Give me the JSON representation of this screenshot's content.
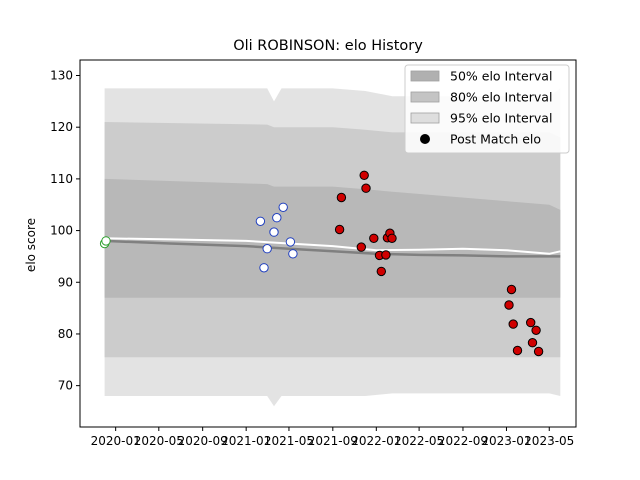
{
  "chart_data": {
    "type": "line",
    "title": "Oli ROBINSON: elo History",
    "xlabel": "",
    "ylabel": "elo score",
    "xlim": [
      "2019-09-23",
      "2023-07-15"
    ],
    "ylim": [
      62,
      133
    ],
    "yticks": [
      70,
      80,
      90,
      100,
      110,
      120,
      130
    ],
    "xticks": [
      "2020-01",
      "2020-05",
      "2020-09",
      "2021-01",
      "2021-05",
      "2021-09",
      "2022-01",
      "2022-05",
      "2022-09",
      "2023-01",
      "2023-05"
    ],
    "grid": false,
    "legend_position": "top-right",
    "legend": [
      {
        "label": "50% elo Interval",
        "kind": "patch",
        "color": "#b0b0b0"
      },
      {
        "label": "80% elo Interval",
        "kind": "patch",
        "color": "#c4c4c4"
      },
      {
        "label": "95% elo Interval",
        "kind": "patch",
        "color": "#dedede"
      },
      {
        "label": "Post Match elo",
        "kind": "marker",
        "color": "#000000"
      }
    ],
    "bands": {
      "x": [
        "2019-12-01",
        "2021-03-01",
        "2021-03-20",
        "2021-04-10",
        "2021-09-01",
        "2021-12-01",
        "2022-02-15",
        "2023-02-01",
        "2023-05-01",
        "2023-06-01"
      ],
      "p95": {
        "upper": [
          127.5,
          127.5,
          125,
          127.5,
          127.5,
          127,
          126,
          126,
          126,
          127.5
        ],
        "lower": [
          68,
          68,
          66,
          68,
          68,
          68,
          68.5,
          68.5,
          68.5,
          68
        ]
      },
      "p80": {
        "upper": [
          121,
          120.5,
          120,
          120,
          120,
          119.5,
          119,
          119,
          119,
          118
        ],
        "lower": [
          75.5,
          75.5,
          75.5,
          75.5,
          75.5,
          75.5,
          75.5,
          75.5,
          75.5,
          75.5
        ]
      },
      "p50": {
        "upper": [
          110,
          109,
          108.5,
          108.5,
          108.5,
          108,
          107.5,
          105.5,
          105,
          104
        ],
        "lower": [
          87,
          87,
          87,
          87,
          87,
          87,
          87,
          87,
          87,
          87
        ]
      }
    },
    "series": [
      {
        "x": [
          "2019-12-01",
          "2020-06-01",
          "2021-01-01",
          "2021-05-01",
          "2021-09-01",
          "2022-01-01",
          "2022-05-01",
          "2022-09-01",
          "2023-01-01",
          "2023-05-01",
          "2023-06-01"
        ],
        "values": [
          98.5,
          98.3,
          98.0,
          97.5,
          97.0,
          96.2,
          96.3,
          96.5,
          96.2,
          95.5,
          96.0
        ],
        "color": "#ffffff"
      },
      {
        "x": [
          "2019-12-01",
          "2020-06-01",
          "2021-01-01",
          "2021-05-01",
          "2021-09-01",
          "2022-01-01",
          "2022-05-01",
          "2022-09-01",
          "2023-01-01",
          "2023-06-01"
        ],
        "values": [
          98.0,
          97.5,
          97.0,
          96.5,
          96.0,
          95.5,
          95.3,
          95.2,
          95.0,
          95.0
        ],
        "color": "#808080"
      }
    ],
    "points": [
      {
        "x": "2019-12-01",
        "y": 97.5,
        "color": "#ffffff",
        "edge": "#2ca02c"
      },
      {
        "x": "2019-12-05",
        "y": 98.0,
        "color": "#ffffff",
        "edge": "#2ca02c"
      },
      {
        "x": "2021-02-10",
        "y": 101.8,
        "color": "#ffffff",
        "edge": "#1f3fbf"
      },
      {
        "x": "2021-02-20",
        "y": 92.8,
        "color": "#ffffff",
        "edge": "#1f3fbf"
      },
      {
        "x": "2021-03-01",
        "y": 96.5,
        "color": "#ffffff",
        "edge": "#1f3fbf"
      },
      {
        "x": "2021-03-20",
        "y": 99.7,
        "color": "#ffffff",
        "edge": "#1f3fbf"
      },
      {
        "x": "2021-03-28",
        "y": 102.5,
        "color": "#ffffff",
        "edge": "#1f3fbf"
      },
      {
        "x": "2021-04-15",
        "y": 104.5,
        "color": "#ffffff",
        "edge": "#1f3fbf"
      },
      {
        "x": "2021-05-05",
        "y": 97.8,
        "color": "#ffffff",
        "edge": "#1f3fbf"
      },
      {
        "x": "2021-05-12",
        "y": 95.5,
        "color": "#ffffff",
        "edge": "#1f3fbf"
      },
      {
        "x": "2021-09-20",
        "y": 100.2,
        "color": "#d00000",
        "edge": "#000000"
      },
      {
        "x": "2021-09-25",
        "y": 106.4,
        "color": "#d00000",
        "edge": "#000000"
      },
      {
        "x": "2021-11-20",
        "y": 96.8,
        "color": "#d00000",
        "edge": "#000000"
      },
      {
        "x": "2021-11-28",
        "y": 110.7,
        "color": "#d00000",
        "edge": "#000000"
      },
      {
        "x": "2021-12-03",
        "y": 108.2,
        "color": "#d00000",
        "edge": "#000000"
      },
      {
        "x": "2021-12-25",
        "y": 98.5,
        "color": "#d00000",
        "edge": "#000000"
      },
      {
        "x": "2022-01-10",
        "y": 95.2,
        "color": "#d00000",
        "edge": "#000000"
      },
      {
        "x": "2022-01-15",
        "y": 92.1,
        "color": "#d00000",
        "edge": "#000000"
      },
      {
        "x": "2022-01-28",
        "y": 95.3,
        "color": "#d00000",
        "edge": "#000000"
      },
      {
        "x": "2022-02-01",
        "y": 98.6,
        "color": "#d00000",
        "edge": "#000000"
      },
      {
        "x": "2022-02-08",
        "y": 99.5,
        "color": "#d00000",
        "edge": "#000000"
      },
      {
        "x": "2022-02-14",
        "y": 98.5,
        "color": "#d00000",
        "edge": "#000000"
      },
      {
        "x": "2023-01-08",
        "y": 85.6,
        "color": "#d00000",
        "edge": "#000000"
      },
      {
        "x": "2023-01-15",
        "y": 88.6,
        "color": "#d00000",
        "edge": "#000000"
      },
      {
        "x": "2023-01-20",
        "y": 81.9,
        "color": "#d00000",
        "edge": "#000000"
      },
      {
        "x": "2023-02-01",
        "y": 76.8,
        "color": "#d00000",
        "edge": "#000000"
      },
      {
        "x": "2023-03-10",
        "y": 82.2,
        "color": "#d00000",
        "edge": "#000000"
      },
      {
        "x": "2023-03-15",
        "y": 78.3,
        "color": "#d00000",
        "edge": "#000000"
      },
      {
        "x": "2023-03-25",
        "y": 80.7,
        "color": "#d00000",
        "edge": "#000000"
      },
      {
        "x": "2023-04-01",
        "y": 76.6,
        "color": "#d00000",
        "edge": "#000000"
      }
    ]
  }
}
